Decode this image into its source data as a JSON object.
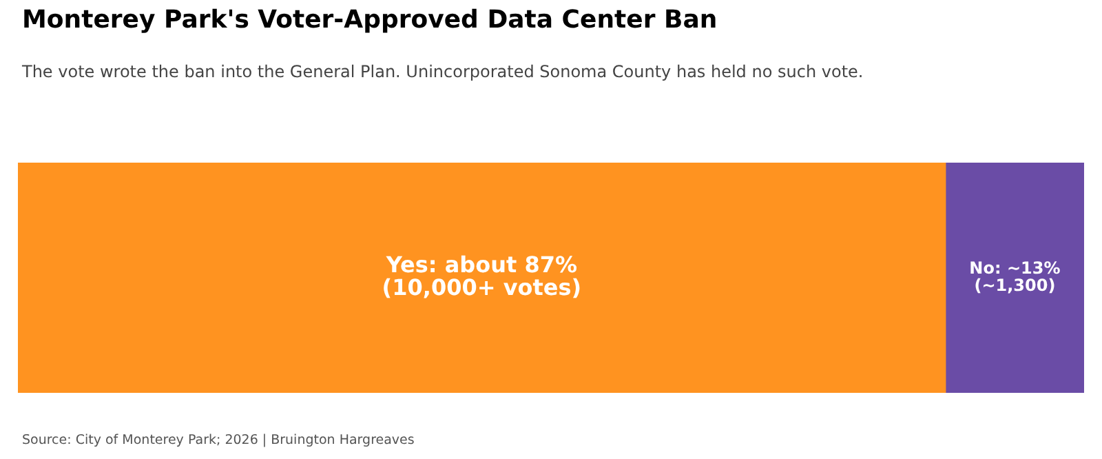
{
  "chart_data": {
    "type": "bar",
    "orientation": "horizontal",
    "stacked": true,
    "title": "Monterey Park's Voter-Approved Data Center Ban",
    "subtitle": "The vote wrote the ban into the General Plan. Unincorporated Sonoma County has held no such vote.",
    "categories": [
      null
    ],
    "series": [
      {
        "color": "#ff9320",
        "values": [
          87
        ],
        "value_labels": [
          "Yes: about 87%\n(10,000+ votes)"
        ]
      },
      {
        "color": "#6a4ca6",
        "values": [
          13
        ],
        "value_labels": [
          "No: ~13%\n(~1,300)"
        ]
      }
    ],
    "xlim": [
      0,
      100
    ],
    "tick_labels": false,
    "legend": false,
    "annotations": [
      "Source: City of Monterey Park; 2026 | Bruington Hargreaves"
    ]
  }
}
